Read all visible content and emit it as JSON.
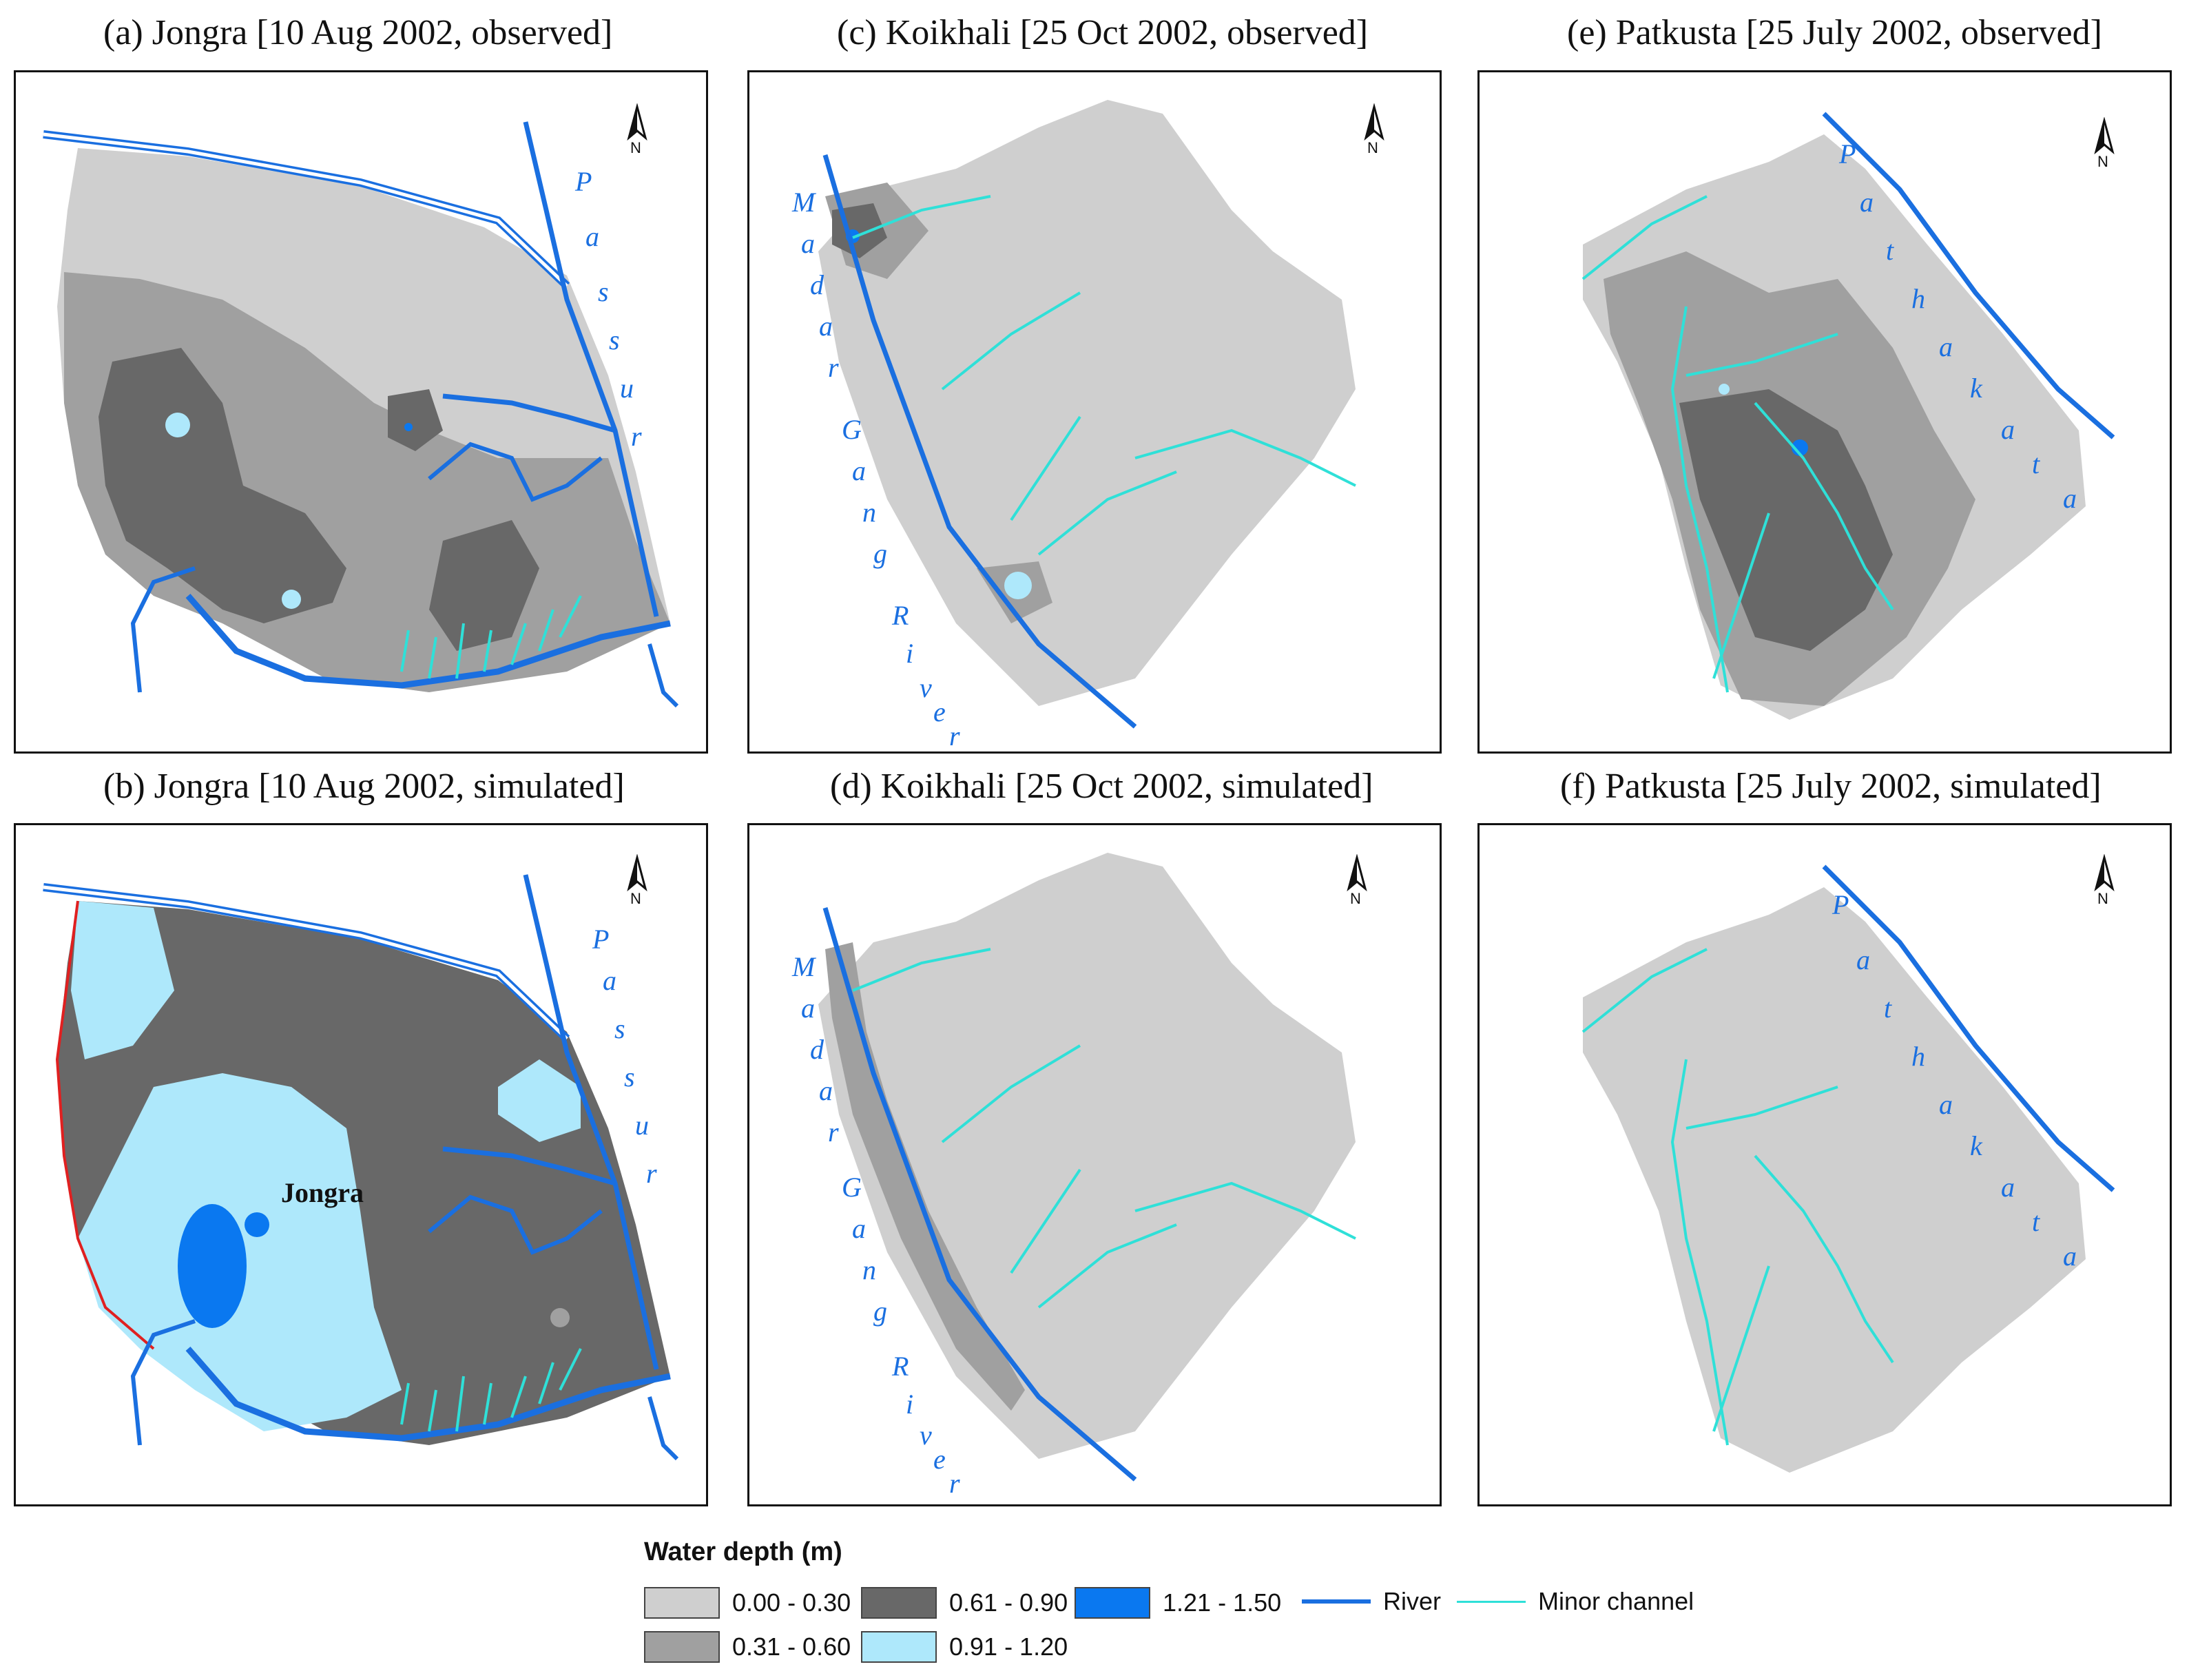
{
  "panels": [
    {
      "title": "(a) Jongra [10 Aug 2002, observed]"
    },
    {
      "title": "(c) Koikhali [25 Oct 2002, observed]"
    },
    {
      "title": "(e) Patkusta [25 July 2002, observed]"
    },
    {
      "title": "(b) Jongra [10 Aug 2002, simulated]"
    },
    {
      "title": "(d) Koikhali [25 Oct 2002, simulated]"
    },
    {
      "title": "(f) Patkusta [25 July 2002, simulated]"
    }
  ],
  "north_label": "N",
  "river_labels": {
    "passur": [
      "P",
      "a",
      "s",
      "s",
      "u",
      "r"
    ],
    "madar_gang": [
      "M",
      "a",
      "d",
      "a",
      "r",
      "G",
      "a",
      "n",
      "g",
      "R",
      "i",
      "v",
      "e",
      "r"
    ],
    "pathakata": [
      "P",
      "a",
      "t",
      "h",
      "a",
      "k",
      "a",
      "t",
      "a"
    ]
  },
  "place_label": "Jongra",
  "legend": {
    "title": "Water depth (m)",
    "classes": [
      {
        "label": "0.00 - 0.30",
        "color": "#cfcfcf"
      },
      {
        "label": "0.31 - 0.60",
        "color": "#a0a0a0"
      },
      {
        "label": "0.61 - 0.90",
        "color": "#686868"
      },
      {
        "label": "0.91 - 1.20",
        "color": "#aee8fb"
      },
      {
        "label": "1.21 - 1.50",
        "color": "#0a78f0"
      }
    ],
    "lines": [
      {
        "label": "River",
        "color": "#1a6fe0"
      },
      {
        "label": "Minor channel",
        "color": "#2fe0d8"
      }
    ]
  },
  "colors": {
    "river": "#1a6fe0",
    "channel": "#2fe0d8",
    "boundary": "#e02020"
  }
}
